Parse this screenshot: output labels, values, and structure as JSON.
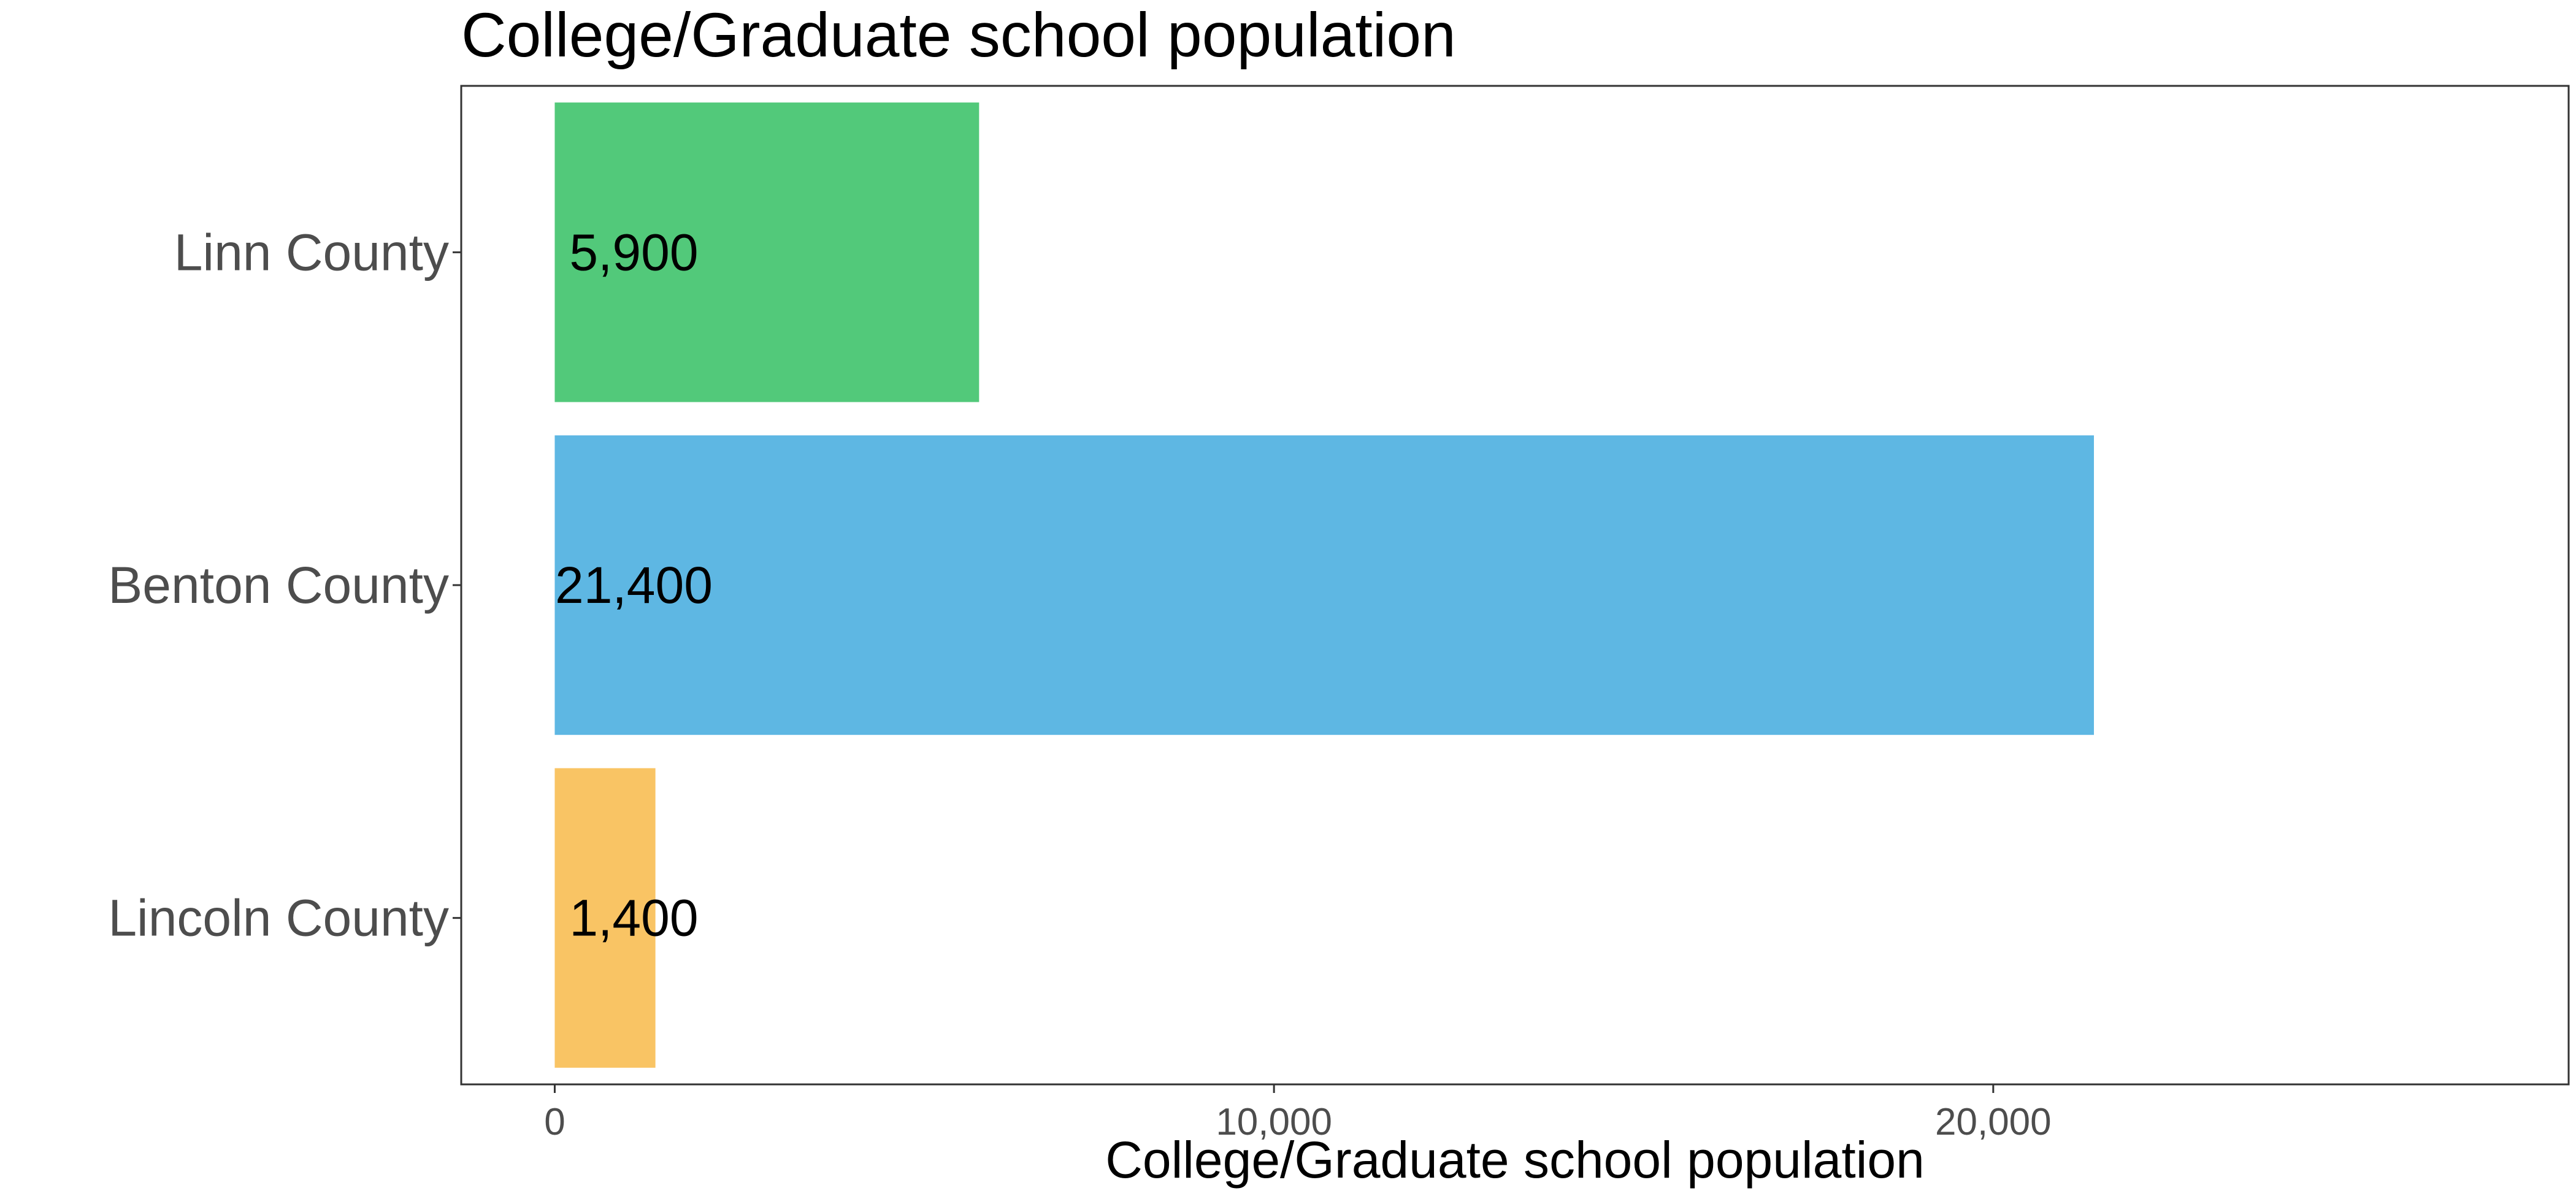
{
  "chart_data": {
    "type": "bar",
    "orientation": "horizontal",
    "title": "College/Graduate school population",
    "xlabel": "College/Graduate school population",
    "ylabel": "",
    "categories": [
      "Linn County",
      "Benton County",
      "Lincoln County"
    ],
    "values": [
      5900,
      21400,
      1400
    ],
    "value_labels": [
      "5,900",
      "21,400",
      "1,400"
    ],
    "colors": [
      "#52c97a",
      "#5eb7e3",
      "#f9c464"
    ],
    "xlim": [
      -1300,
      28000
    ],
    "xticks": [
      0,
      10000,
      20000
    ],
    "xtick_labels": [
      "0",
      "10,000",
      "20,000"
    ],
    "grid": false,
    "legend": "none"
  }
}
